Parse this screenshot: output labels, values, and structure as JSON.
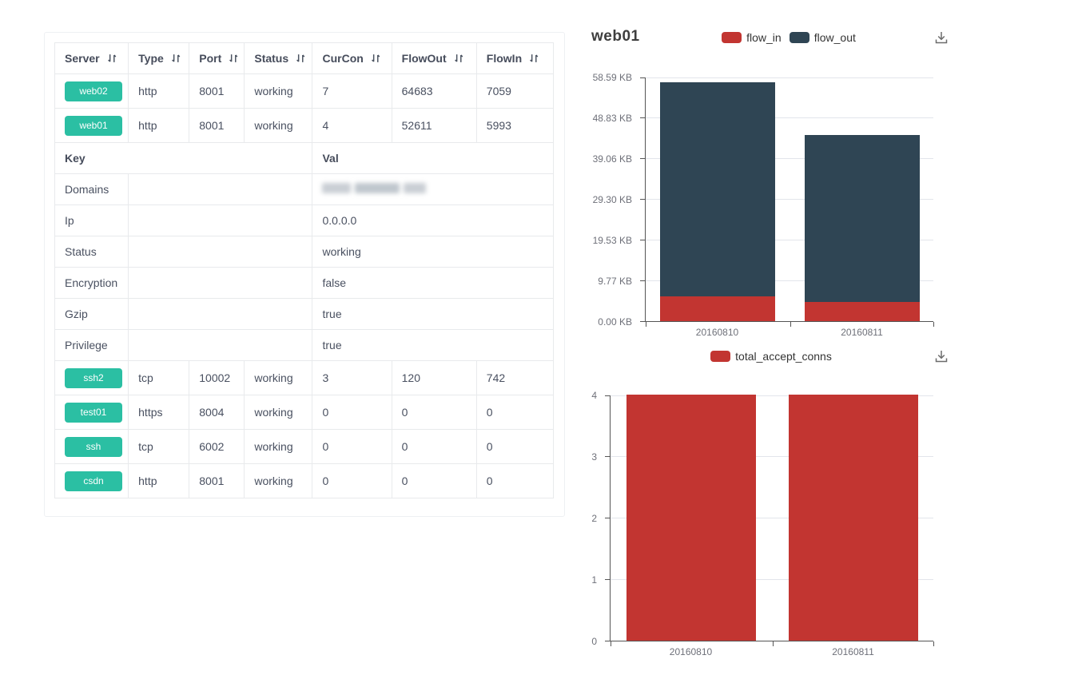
{
  "colors": {
    "accent_red": "#c23531",
    "dark_slate": "#2f4554",
    "badge_green": "#2bbfa3",
    "table_border": "#e8eaec",
    "axis_line": "#555555",
    "grid_line": "#e2e5eb",
    "table_text": "#495060",
    "axis_label": "#6e7079"
  },
  "icons": {
    "sort": "sort-arrows-icon",
    "download": "download-tray-icon"
  },
  "table": {
    "columns": [
      {
        "label": "Server",
        "sortable": true
      },
      {
        "label": "Type",
        "sortable": true
      },
      {
        "label": "Port",
        "sortable": true
      },
      {
        "label": "Status",
        "sortable": true
      },
      {
        "label": "CurCon",
        "sortable": true
      },
      {
        "label": "FlowOut",
        "sortable": true
      },
      {
        "label": "FlowIn",
        "sortable": true
      }
    ],
    "rows_top": [
      {
        "server": "web02",
        "type": "http",
        "port": "8001",
        "status": "working",
        "curcon": "7",
        "flowout": "64683",
        "flowin": "7059"
      },
      {
        "server": "web01",
        "type": "http",
        "port": "8001",
        "status": "working",
        "curcon": "4",
        "flowout": "52611",
        "flowin": "5993"
      }
    ],
    "kv_header": {
      "key": "Key",
      "val": "Val"
    },
    "kv_rows": [
      {
        "key": "Domains",
        "val": "",
        "redacted": true
      },
      {
        "key": "Ip",
        "val": "0.0.0.0"
      },
      {
        "key": "Status",
        "val": "working"
      },
      {
        "key": "Encryption",
        "val": "false"
      },
      {
        "key": "Gzip",
        "val": "true"
      },
      {
        "key": "Privilege",
        "val": "true"
      }
    ],
    "rows_bottom": [
      {
        "server": "ssh2",
        "type": "tcp",
        "port": "10002",
        "status": "working",
        "curcon": "3",
        "flowout": "120",
        "flowin": "742"
      },
      {
        "server": "test01",
        "type": "https",
        "port": "8004",
        "status": "working",
        "curcon": "0",
        "flowout": "0",
        "flowin": "0"
      },
      {
        "server": "ssh",
        "type": "tcp",
        "port": "6002",
        "status": "working",
        "curcon": "0",
        "flowout": "0",
        "flowin": "0"
      },
      {
        "server": "csdn",
        "type": "http",
        "port": "8001",
        "status": "working",
        "curcon": "0",
        "flowout": "0",
        "flowin": "0"
      }
    ]
  },
  "chart_data": [
    {
      "type": "bar",
      "stacked": true,
      "title": "web01",
      "categories": [
        "20160810",
        "20160811"
      ],
      "series": [
        {
          "name": "flow_in",
          "color": "#c23531",
          "values": [
            5.85,
            4.5
          ]
        },
        {
          "name": "flow_out",
          "color": "#2f4554",
          "values": [
            51.38,
            40.1
          ]
        }
      ],
      "unit": "KB",
      "yticks": [
        {
          "label": "0.00 KB",
          "v": 0
        },
        {
          "label": "9.77 KB",
          "v": 9.77
        },
        {
          "label": "19.53 KB",
          "v": 19.53
        },
        {
          "label": "29.30 KB",
          "v": 29.3
        },
        {
          "label": "39.06 KB",
          "v": 39.06
        },
        {
          "label": "48.83 KB",
          "v": 48.83
        },
        {
          "label": "58.59 KB",
          "v": 58.59
        }
      ],
      "ylim": [
        0,
        58.59
      ],
      "xlabel": "",
      "ylabel": "",
      "grid": true,
      "legend_position": "top"
    },
    {
      "type": "bar",
      "stacked": false,
      "title": "",
      "categories": [
        "20160810",
        "20160811"
      ],
      "series": [
        {
          "name": "total_accept_conns",
          "color": "#c23531",
          "values": [
            4,
            4
          ]
        }
      ],
      "yticks": [
        {
          "label": "0",
          "v": 0
        },
        {
          "label": "1",
          "v": 1
        },
        {
          "label": "2",
          "v": 2
        },
        {
          "label": "3",
          "v": 3
        },
        {
          "label": "4",
          "v": 4
        }
      ],
      "ylim": [
        0,
        4
      ],
      "xlabel": "",
      "ylabel": "",
      "grid": true,
      "legend_position": "top"
    }
  ]
}
